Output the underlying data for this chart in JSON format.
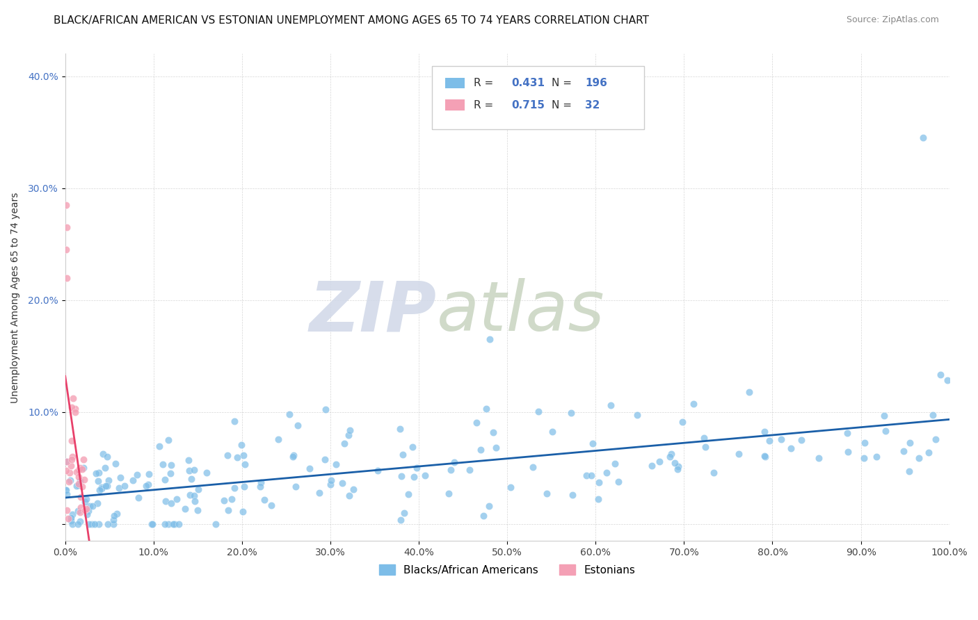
{
  "title": "BLACK/AFRICAN AMERICAN VS ESTONIAN UNEMPLOYMENT AMONG AGES 65 TO 74 YEARS CORRELATION CHART",
  "source": "Source: ZipAtlas.com",
  "ylabel": "Unemployment Among Ages 65 to 74 years",
  "xlim": [
    0,
    1.0
  ],
  "ylim": [
    -0.015,
    0.42
  ],
  "xticks": [
    0.0,
    0.1,
    0.2,
    0.3,
    0.4,
    0.5,
    0.6,
    0.7,
    0.8,
    0.9,
    1.0
  ],
  "xticklabels": [
    "0.0%",
    "10.0%",
    "20.0%",
    "30.0%",
    "40.0%",
    "50.0%",
    "60.0%",
    "70.0%",
    "80.0%",
    "90.0%",
    "100.0%"
  ],
  "yticks": [
    0.0,
    0.1,
    0.2,
    0.3,
    0.4
  ],
  "yticklabels": [
    "",
    "10.0%",
    "20.0%",
    "30.0%",
    "40.0%"
  ],
  "R_blue": 0.431,
  "N_blue": 196,
  "R_pink": 0.715,
  "N_pink": 32,
  "blue_color": "#7dbde8",
  "pink_color": "#f4a0b5",
  "blue_line_color": "#1a5fa8",
  "pink_line_color": "#e8406a",
  "watermark_zip": "ZIP",
  "watermark_atlas": "atlas",
  "legend_labels": [
    "Blacks/African Americans",
    "Estonians"
  ],
  "title_fontsize": 11,
  "axis_label_fontsize": 10,
  "tick_fontsize": 10,
  "source_fontsize": 9
}
